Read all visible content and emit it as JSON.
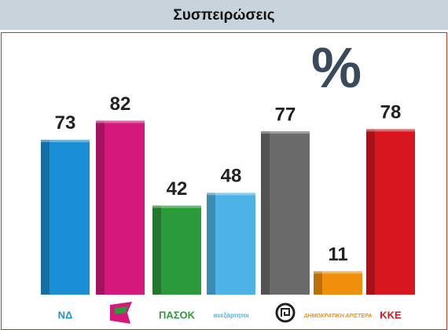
{
  "chart_data": {
    "type": "bar",
    "title": "Συσπειρώσεις",
    "annotation": "%",
    "categories": [
      "ΝΔ",
      null,
      "ΠΑΣΟΚ",
      "ανεξάρτητοι",
      null,
      "ΔΗΜΟΚΡΑΤΙΚΗ ΑΡΙΣΤΕΡΑ",
      "ΚΚΕ"
    ],
    "values": [
      73,
      82,
      42,
      48,
      77,
      11,
      78
    ],
    "colors": [
      "#1b8fd6",
      "#d4187c",
      "#2b9a3a",
      "#4db3e6",
      "#6a6a6a",
      "#ef8f0c",
      "#d8161e"
    ]
  }
}
